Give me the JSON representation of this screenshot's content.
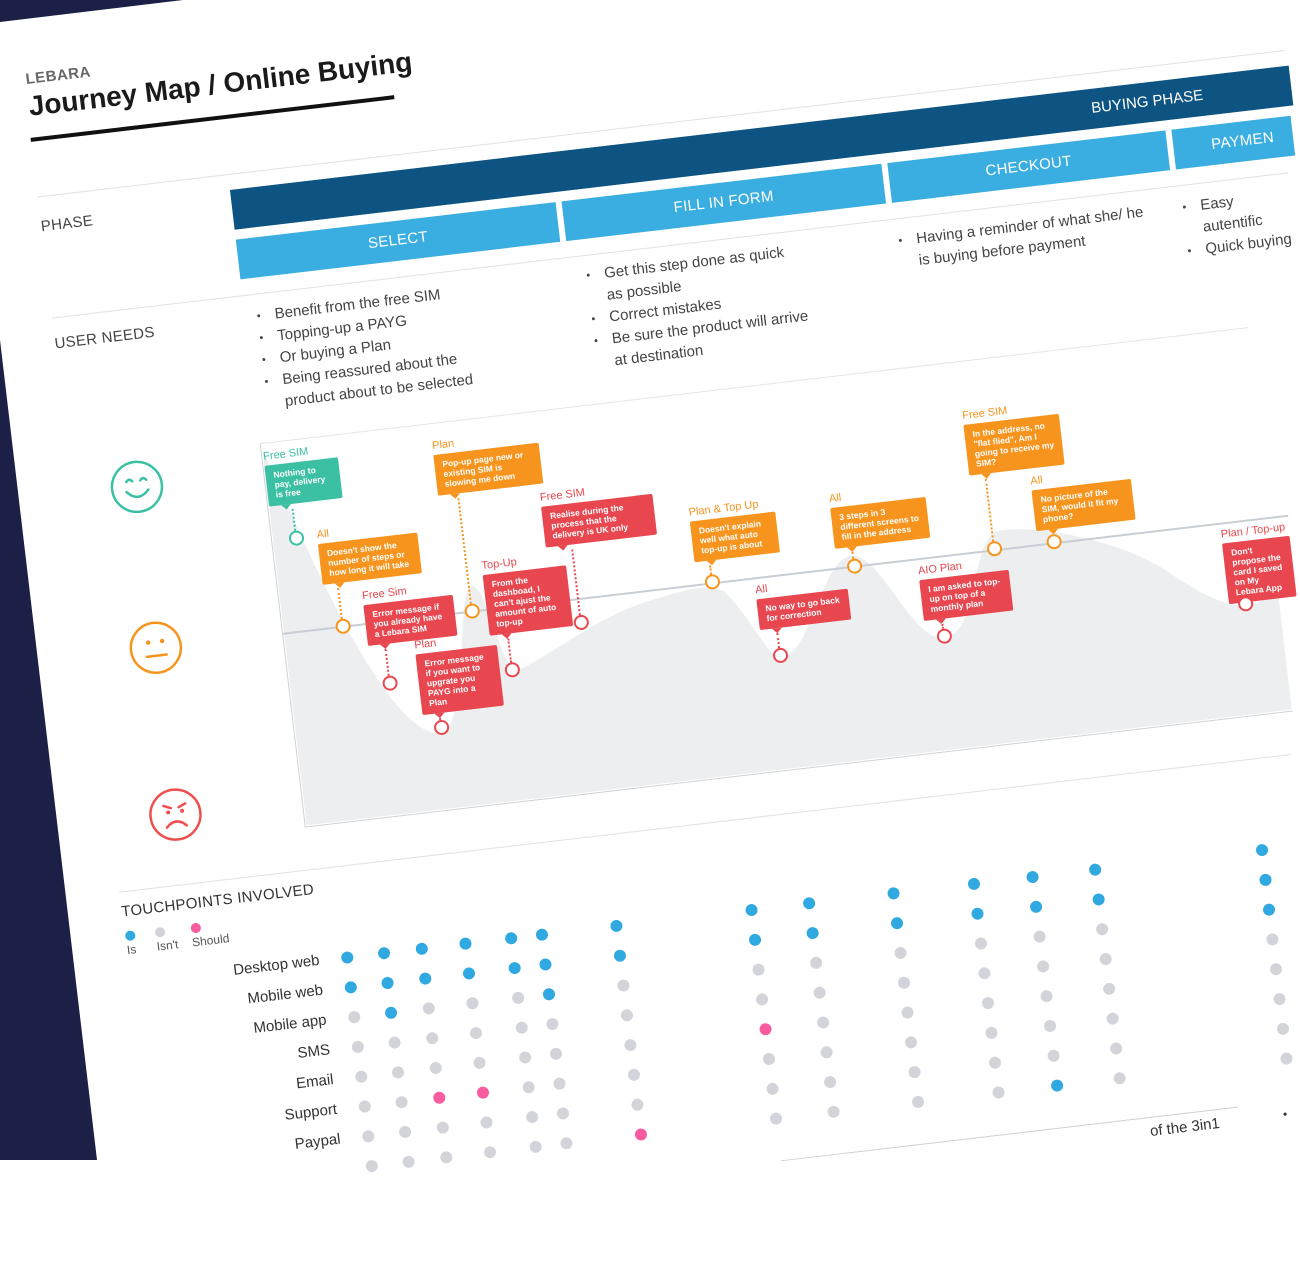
{
  "header": {
    "brand": "LEBARA",
    "title": "Journey Map / Online Buying"
  },
  "rows": {
    "phase": "PHASE",
    "user_needs": "USER NEEDS"
  },
  "phase": {
    "name": "BUYING PHASE",
    "steps": [
      "SELECT",
      "FILL IN FORM",
      "CHECKOUT",
      "PAYMEN"
    ]
  },
  "user_needs": [
    [
      "Benefit from the free SIM",
      "Topping-up a PAYG",
      "Or buying a Plan",
      "Being reassured about the product about to be selected"
    ],
    [
      "Get this step done as quick as possible",
      "Correct mistakes",
      "Be sure the product will arrive at destination"
    ],
    [
      "Having a reminder of what she/ he is buying before payment"
    ],
    [
      "Easy autentific",
      "Quick buying"
    ]
  ],
  "emotions": [
    "happy-face-icon",
    "neutral-face-icon",
    "sad-face-icon"
  ],
  "colors": {
    "dark_blue": "#0d5482",
    "light_blue": "#3aaee0",
    "positive": "#3cc0a4",
    "neutral": "#f7941d",
    "negative": "#e8474f",
    "is": "#2fa9e0",
    "isnt": "#d3d4da",
    "should": "#f95ba0"
  },
  "pain_points": [
    {
      "segment": "Free SIM",
      "text": "Nothing to pay, delivery is free",
      "tone": "positive"
    },
    {
      "segment": "All",
      "text": "Doesn't show the number of steps or how long it will take",
      "tone": "neutral"
    },
    {
      "segment": "Free Sim",
      "text": "Error message if you already have a Lebara SIM",
      "tone": "negative"
    },
    {
      "segment": "Plan",
      "text": "Error message if you want to upgrate you PAYG into a Plan",
      "tone": "negative"
    },
    {
      "segment": "Plan",
      "text": "Pop-up page new or existing SIM is slowing me down",
      "tone": "neutral"
    },
    {
      "segment": "Top-Up",
      "text": "From the dashboad, I can't ajust the amount of auto top-up",
      "tone": "negative"
    },
    {
      "segment": "Free SIM",
      "text": "Realise during the process that the delivery is UK only",
      "tone": "negative"
    },
    {
      "segment": "Plan & Top Up",
      "text": "Doesn't explain well what auto top-up is about",
      "tone": "neutral"
    },
    {
      "segment": "All",
      "text": "No way to go back for correction",
      "tone": "negative"
    },
    {
      "segment": "All",
      "text": "3 steps in 3 different screens  to fill in the address",
      "tone": "neutral"
    },
    {
      "segment": "AIO Plan",
      "text": "I am asked to top-up on top of a monthly plan",
      "tone": "negative"
    },
    {
      "segment": "Free SIM",
      "text": "In the address, no \"flat flied\", Am I going to receive my SIM?",
      "tone": "neutral"
    },
    {
      "segment": "All",
      "text": "No picture of the SIM, would it fit my phone?",
      "tone": "neutral"
    },
    {
      "segment": "Plan / Top-up",
      "text": "Don't propose the card I saved on My Lebara App",
      "tone": "negative"
    }
  ],
  "touchpoints": {
    "title": "TOUCHPOINTS INVOLVED",
    "legend": [
      {
        "key": "is",
        "label": "Is"
      },
      {
        "key": "isnt",
        "label": "Isn't"
      },
      {
        "key": "should",
        "label": "Should"
      }
    ],
    "channels": [
      "Desktop web",
      "Mobile web",
      "Mobile app",
      "SMS",
      "Email",
      "Support",
      "Paypal",
      ""
    ],
    "columns": [
      [
        "is",
        "is",
        "isnt",
        "isnt",
        "isnt",
        "isnt",
        "isnt",
        "isnt"
      ],
      [
        "is",
        "is",
        "is",
        "isnt",
        "isnt",
        "isnt",
        "isnt",
        "isnt"
      ],
      [
        "is",
        "is",
        "isnt",
        "isnt",
        "isnt",
        "should",
        "isnt",
        "isnt"
      ],
      [
        "is",
        "is",
        "isnt",
        "isnt",
        "isnt",
        "should",
        "isnt",
        "isnt"
      ],
      [
        "is",
        "is",
        "isnt",
        "isnt",
        "isnt",
        "isnt",
        "isnt",
        "isnt"
      ],
      [
        "is",
        "is",
        "is",
        "isnt",
        "isnt",
        "isnt",
        "isnt",
        "isnt"
      ],
      [
        "is",
        "is",
        "isnt",
        "isnt",
        "isnt",
        "isnt",
        "isnt",
        "should"
      ],
      [
        "is",
        "is",
        "isnt",
        "isnt",
        "should",
        "isnt",
        "isnt",
        "isnt"
      ],
      [
        "is",
        "is",
        "isnt",
        "isnt",
        "isnt",
        "isnt",
        "isnt",
        "isnt"
      ],
      [
        "is",
        "is",
        "isnt",
        "isnt",
        "isnt",
        "isnt",
        "isnt",
        "isnt"
      ],
      [
        "is",
        "is",
        "isnt",
        "isnt",
        "isnt",
        "isnt",
        "isnt",
        "isnt"
      ],
      [
        "is",
        "is",
        "isnt",
        "isnt",
        "isnt",
        "isnt",
        "isnt",
        "is"
      ],
      [
        "is",
        "is",
        "isnt",
        "isnt",
        "isnt",
        "isnt",
        "isnt",
        "isnt"
      ],
      [
        "is",
        "is",
        "is",
        "isnt",
        "isnt",
        "isnt",
        "isnt",
        "isnt"
      ]
    ]
  },
  "footer_fragment": "of the 3in1"
}
